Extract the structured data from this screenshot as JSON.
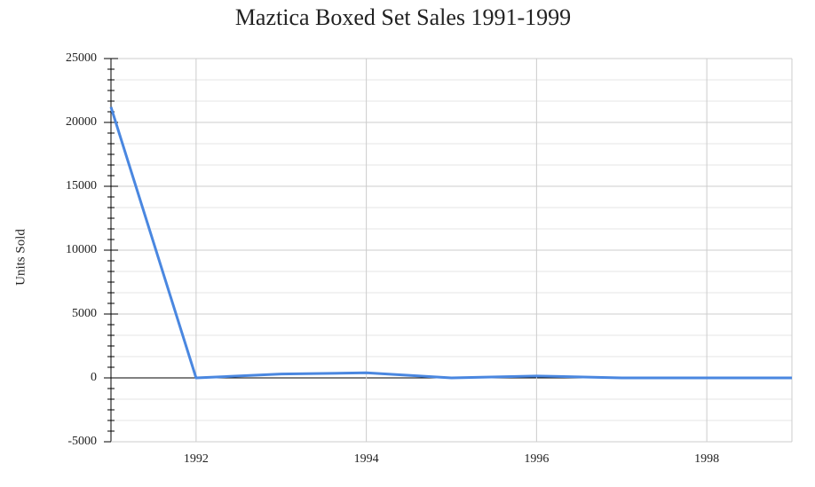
{
  "chart_data": {
    "type": "line",
    "title": "Maztica Boxed Set Sales 1991-1999",
    "y_label": "Units Sold",
    "x": [
      1991,
      1992,
      1993,
      1994,
      1995,
      1996,
      1997,
      1998,
      1999
    ],
    "series": [
      {
        "name": "Units Sold",
        "color": "#4a87e0",
        "values": [
          21200,
          0,
          300,
          400,
          0,
          150,
          0,
          0,
          0
        ]
      }
    ],
    "xlim": [
      1991,
      1999
    ],
    "xticks": [
      1992,
      1994,
      1996,
      1998
    ],
    "ylim": [
      -5000,
      25000
    ],
    "yticks": [
      -5000,
      0,
      5000,
      10000,
      15000,
      20000,
      25000
    ],
    "grid": true
  }
}
